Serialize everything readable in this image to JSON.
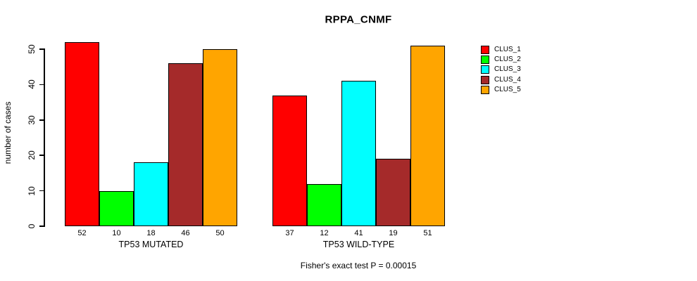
{
  "title": "RPPA_CNMF",
  "y_axis_label": "number of cases",
  "footnote": "Fisher's exact test P = 0.00015",
  "legend": {
    "items": [
      {
        "label": "CLUS_1",
        "color": "#FF0000"
      },
      {
        "label": "CLUS_2",
        "color": "#00FF00"
      },
      {
        "label": "CLUS_3",
        "color": "#00FFFF"
      },
      {
        "label": "CLUS_4",
        "color": "#A52A2A"
      },
      {
        "label": "CLUS_5",
        "color": "#FFA500"
      }
    ]
  },
  "chart_data": {
    "type": "bar",
    "title": "RPPA_CNMF",
    "xlabel": "",
    "ylabel": "number of cases",
    "ylim": [
      0,
      50
    ],
    "yticks": [
      0,
      10,
      20,
      30,
      40,
      50
    ],
    "grid": false,
    "legend_position": "top-right",
    "bar_value_labels": true,
    "categories": [
      "CLUS_1",
      "CLUS_2",
      "CLUS_3",
      "CLUS_4",
      "CLUS_5"
    ],
    "colors": [
      "#FF0000",
      "#00FF00",
      "#00FFFF",
      "#A52A2A",
      "#FFA500"
    ],
    "groups": [
      {
        "label": "TP53 MUTATED",
        "values": [
          52,
          10,
          18,
          46,
          50
        ]
      },
      {
        "label": "TP53 WILD-TYPE",
        "values": [
          37,
          12,
          41,
          19,
          51
        ]
      }
    ],
    "annotation": "Fisher's exact test P = 0.00015"
  }
}
